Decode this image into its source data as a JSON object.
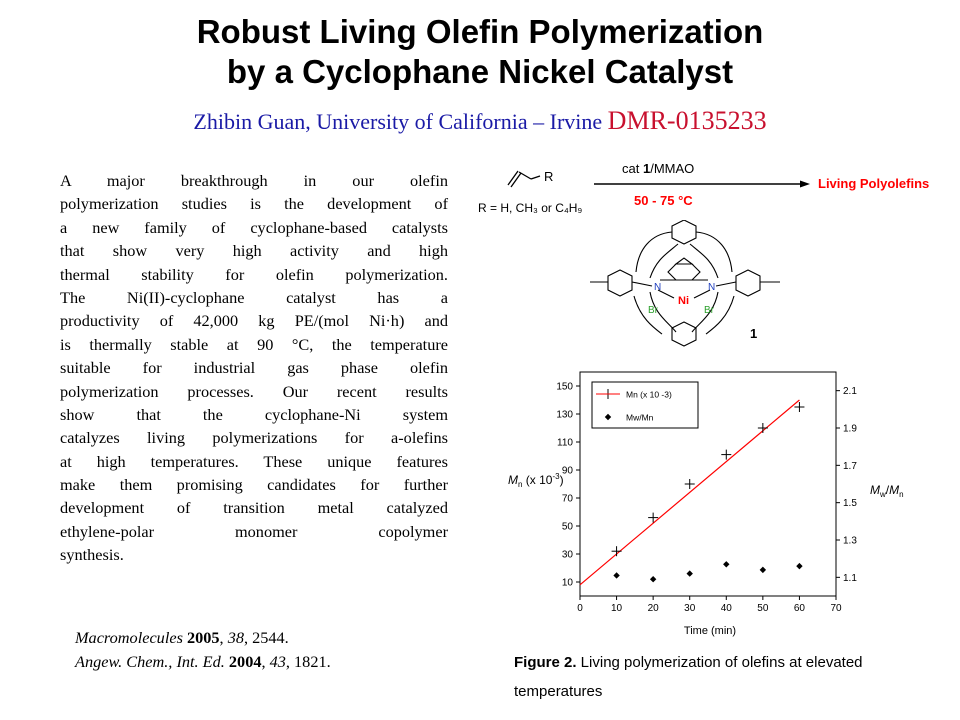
{
  "title": {
    "line1": "Robust Living Olefin Polymerization",
    "line2": "by a Cyclophane Nickel Catalyst"
  },
  "byline": {
    "author": "Zhibin Guan, University of California – Irvine",
    "award": "DMR-0135233"
  },
  "body_lines": [
    "A major breakthrough in our olefin",
    "polymerization studies is the development of",
    "a new family of cyclophane-based catalysts",
    "that show very high activity and high",
    "thermal stability for olefin polymerization.",
    "The Ni(II)-cyclophane catalyst has a",
    "productivity of 42,000 kg PE/(mol Ni·h) and",
    "is thermally stable at 90 °C, the temperature",
    "suitable for industrial gas phase olefin",
    "polymerization processes. Our recent results",
    "show that the cyclophane-Ni system",
    "catalyzes living polymerizations for a-olefins",
    "at high temperatures. These unique features",
    "make them promising candidates for further",
    "development of transition metal catalyzed",
    "ethylene-polar monomer copolymer",
    "synthesis."
  ],
  "references": [
    {
      "journal": "Macromolecules",
      "year": "2005",
      "volume": "38",
      "pages": "2544."
    },
    {
      "journal": "Angew. Chem., Int. Ed.",
      "year": "2004",
      "volume": "43",
      "pages": "1821."
    }
  ],
  "scheme": {
    "monomer_label": "R",
    "r_definition": "R = H, CH₃ or C₄H₉",
    "arrow_top_prefix": "cat ",
    "arrow_top_bold": "1",
    "arrow_top_suffix": "/MMAO",
    "arrow_bottom": "50 - 75 °C",
    "product": "Living Polyolefins",
    "accent_color": "#ff0000"
  },
  "structure": {
    "metal": "Ni",
    "n_left": "N",
    "n_right": "N",
    "br_left": "Br",
    "br_right": "Br",
    "compound_number": "1",
    "n_color": "#1f3fbf",
    "br_color": "#2ca02c",
    "ni_color": "#ff0000"
  },
  "chart_data": {
    "type": "scatter",
    "xlabel": "Time (min)",
    "ylabel_left": "M (x 10⁻³)",
    "ylabel_left_parts": {
      "symbol": "M",
      "subscript": "n",
      "rest": " (x 10",
      "exponent": "-3",
      "close": ")"
    },
    "ylabel_right_parts": {
      "symbol1": "M",
      "sub1": "w",
      "slash": "/",
      "symbol2": "M",
      "sub2": "n"
    },
    "xlim": [
      0,
      70
    ],
    "ylim_left": [
      0,
      160
    ],
    "ylim_right": [
      1.0,
      2.2
    ],
    "x_ticks": [
      0,
      10,
      20,
      30,
      40,
      50,
      60,
      70
    ],
    "y_ticks_left": [
      10,
      30,
      50,
      70,
      90,
      110,
      130,
      150
    ],
    "y_ticks_right": [
      1.1,
      1.3,
      1.5,
      1.7,
      1.9,
      2.1
    ],
    "legend": [
      {
        "label": "Mn (x 10 -3)",
        "marker": "cross"
      },
      {
        "label": "Mw/Mn",
        "marker": "diamond"
      }
    ],
    "series": [
      {
        "name": "Mn (x 10 -3)",
        "axis": "left",
        "marker": "cross",
        "x": [
          10,
          20,
          30,
          40,
          50,
          60
        ],
        "y": [
          32,
          56,
          80,
          101,
          120,
          135
        ]
      },
      {
        "name": "Mw/Mn",
        "axis": "right",
        "marker": "diamond",
        "x": [
          10,
          20,
          30,
          40,
          50,
          60
        ],
        "y": [
          1.11,
          1.09,
          1.12,
          1.17,
          1.14,
          1.16
        ]
      }
    ],
    "fit_line": {
      "x": [
        0,
        60
      ],
      "y": [
        8,
        140
      ],
      "color": "#ff0000"
    }
  },
  "caption": {
    "label": "Figure 2.",
    "text": " Living polymerization of olefins at elevated temperatures"
  }
}
